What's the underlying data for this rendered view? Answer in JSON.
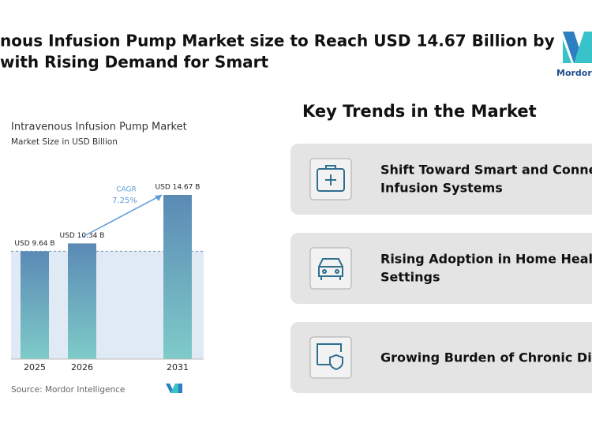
{
  "header": {
    "title_lines": [
      "nous Infusion Pump Market size to Reach USD 14.67 Billion by",
      "with Rising Demand for Smart"
    ],
    "logo_text": "Mordor In"
  },
  "chart_data": {
    "type": "bar",
    "title": "Intravenous Infusion Pump Market",
    "subtitle": "Market Size in USD Billion",
    "categories": [
      "2025",
      "2026",
      "2031"
    ],
    "values": [
      9.64,
      10.34,
      14.67
    ],
    "value_labels": [
      "USD 9.64 B",
      "USD 10.34 B",
      "USD 14.67 B"
    ],
    "cagr_label": "CAGR",
    "cagr_value": "7.25%",
    "source": "Source: Mordor Intelligence",
    "color_top": "#5b8ab5",
    "color_bottom": "#7ecbc8"
  },
  "trends": {
    "title": "Key Trends in the Market",
    "items": [
      {
        "lines": [
          "Shift Toward Smart and Connec",
          "Infusion Systems"
        ]
      },
      {
        "lines": [
          "Rising Adoption in Home Health",
          "Settings"
        ]
      },
      {
        "lines": [
          "Growing Burden of Chronic Dise"
        ]
      }
    ]
  }
}
